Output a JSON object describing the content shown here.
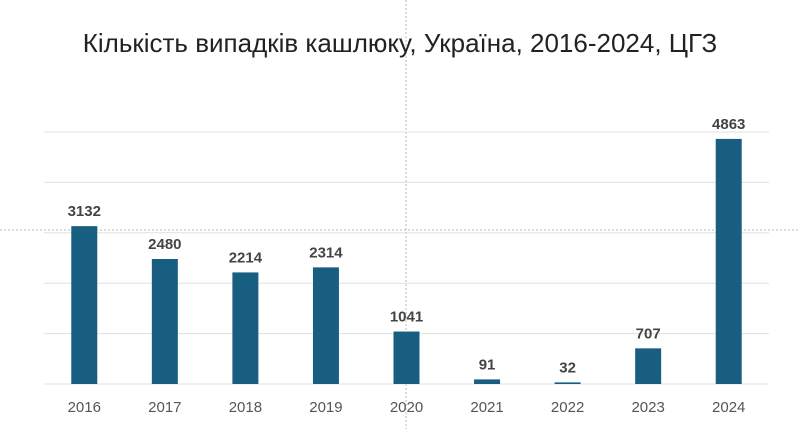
{
  "chart_data": {
    "type": "bar",
    "title": "Кількість випадків кашлюку, Україна, 2016-2024, ЦГЗ",
    "categories": [
      "2016",
      "2017",
      "2018",
      "2019",
      "2020",
      "2021",
      "2022",
      "2023",
      "2024"
    ],
    "values": [
      3132,
      2480,
      2214,
      2314,
      1041,
      91,
      32,
      707,
      4863
    ],
    "color": "#175e81",
    "ylim": [
      0,
      5000
    ],
    "yticks": [
      0,
      1000,
      2000,
      3000,
      4000,
      5000
    ],
    "grid": true
  }
}
